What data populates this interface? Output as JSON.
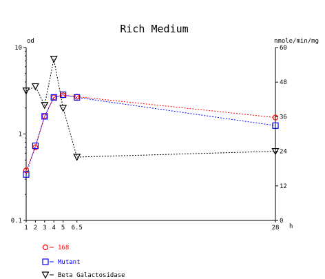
{
  "chart_data": {
    "type": "line",
    "title": "Rich Medium",
    "left_axis": {
      "label": "od",
      "scale": "log",
      "range": [
        0.1,
        10
      ],
      "tick_labels": [
        "0.1",
        "1",
        "10"
      ]
    },
    "right_axis": {
      "label": "nmole/min/mg",
      "scale": "linear",
      "range": [
        0,
        60
      ],
      "tick_labels": [
        "0",
        "12",
        "24",
        "36",
        "48",
        "60"
      ]
    },
    "x_axis": {
      "label": "h",
      "range": [
        1,
        28
      ],
      "tick_labels": [
        "1",
        "2",
        "3",
        "4",
        "5",
        "6.5",
        "28"
      ]
    },
    "grid": false,
    "legend_position": "bottom-left",
    "series": [
      {
        "name": "168",
        "axis": "left",
        "marker": "circle",
        "color": "#ff0000",
        "x": [
          1,
          2,
          3,
          4,
          5,
          6.5,
          28
        ],
        "y": [
          0.38,
          0.7,
          1.6,
          2.65,
          2.8,
          2.7,
          1.55
        ]
      },
      {
        "name": "Mutant",
        "axis": "left",
        "marker": "square",
        "color": "#0000ff",
        "x": [
          1,
          2,
          3,
          4,
          5,
          6.5,
          28
        ],
        "y": [
          0.34,
          0.73,
          1.6,
          2.65,
          2.85,
          2.65,
          1.25
        ]
      },
      {
        "name": "Beta Galactosidase",
        "axis": "right",
        "marker": "triangle-down",
        "color": "#000000",
        "x": [
          1,
          2,
          3,
          4,
          5,
          6.5,
          28
        ],
        "y": [
          45,
          46.5,
          40,
          56,
          39,
          22,
          24
        ]
      }
    ]
  }
}
